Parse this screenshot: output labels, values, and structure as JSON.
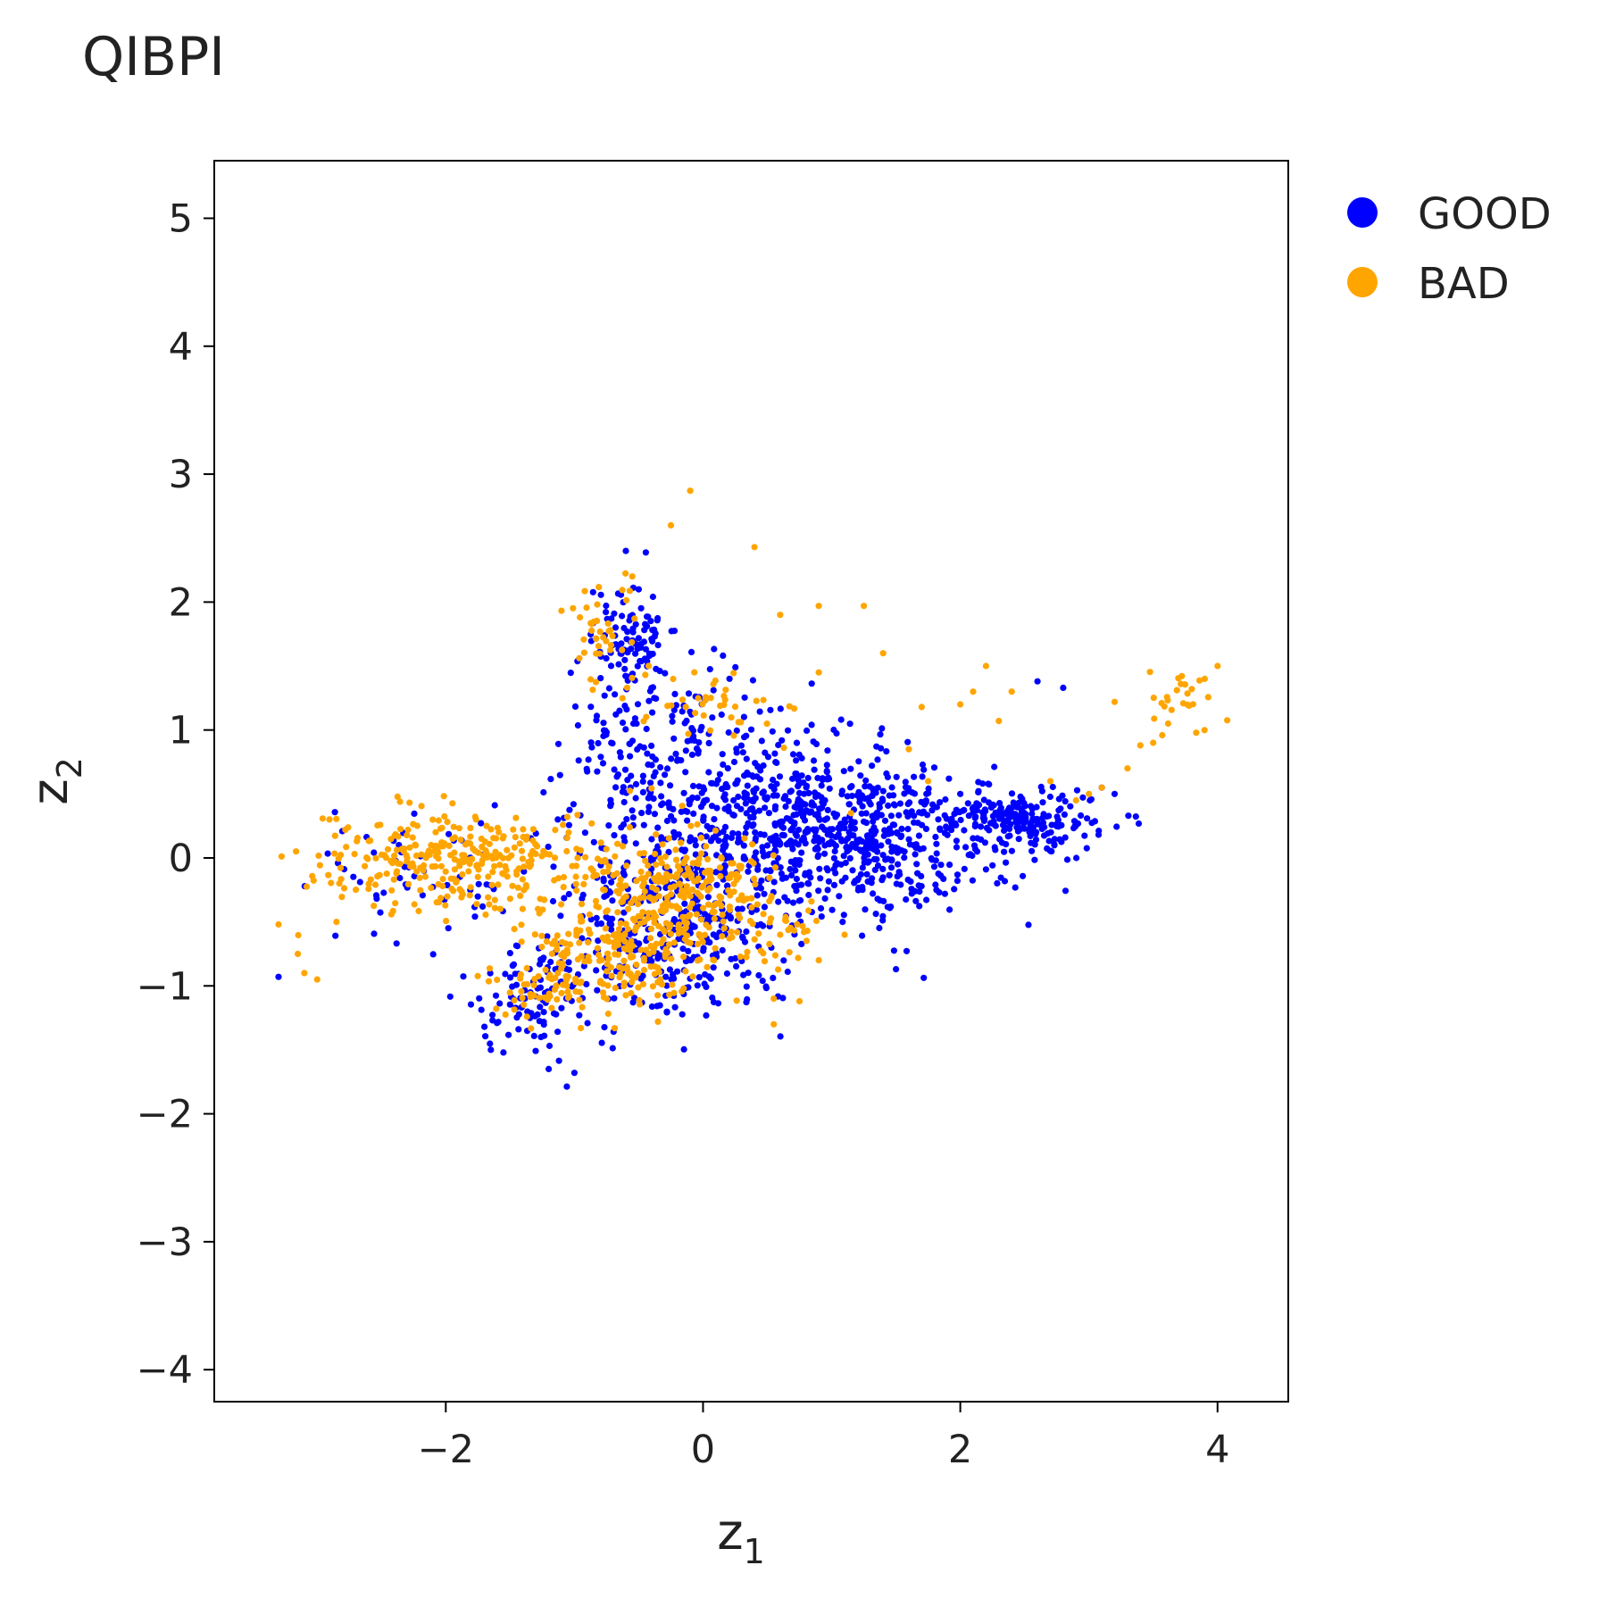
{
  "chart_data": {
    "type": "scatter",
    "title": "QIBPI",
    "xlabel": {
      "main": "z",
      "sub": "1"
    },
    "ylabel": {
      "main": "z",
      "sub": "2"
    },
    "xlim": [
      -3.8,
      4.55
    ],
    "ylim": [
      -4.25,
      5.45
    ],
    "xticks": [
      -2,
      0,
      2,
      4
    ],
    "xtick_labels": [
      "−2",
      "0",
      "2",
      "4"
    ],
    "yticks": [
      -4,
      -3,
      -2,
      -1,
      0,
      1,
      2,
      3,
      4,
      5
    ],
    "ytick_labels": [
      "−4",
      "−3",
      "−2",
      "−1",
      "0",
      "1",
      "2",
      "3",
      "4",
      "5"
    ],
    "grid": false,
    "legend": "right-outside-top",
    "series": [
      {
        "name": "GOOD",
        "color": "#0000ff",
        "clusters": [
          {
            "x": 1.2,
            "y": 0.15,
            "sx": 0.55,
            "sy": 0.3,
            "n": 550
          },
          {
            "x": 2.5,
            "y": 0.3,
            "sx": 0.35,
            "sy": 0.12,
            "n": 200
          },
          {
            "x": -0.25,
            "y": -0.55,
            "sx": 0.45,
            "sy": 0.35,
            "n": 380
          },
          {
            "x": -0.35,
            "y": 0.75,
            "sx": 0.4,
            "sy": 0.5,
            "n": 250
          },
          {
            "x": -0.55,
            "y": 1.7,
            "sx": 0.15,
            "sy": 0.2,
            "n": 90
          },
          {
            "x": -1.3,
            "y": -1.1,
            "sx": 0.25,
            "sy": 0.2,
            "n": 90
          },
          {
            "x": -2.3,
            "y": -0.1,
            "sx": 0.45,
            "sy": 0.25,
            "n": 60
          },
          {
            "x": 0.5,
            "y": 0.4,
            "sx": 0.4,
            "sy": 0.3,
            "n": 200
          }
        ],
        "points": [
          [
            -3.3,
            -0.93
          ],
          [
            -1.65,
            -1.5
          ],
          [
            -1.2,
            -1.65
          ],
          [
            -1.0,
            -1.68
          ],
          [
            -0.5,
            2.1
          ],
          [
            -0.6,
            2.4
          ],
          [
            2.0,
            0.5
          ],
          [
            3.1,
            0.55
          ],
          [
            3.2,
            0.5
          ],
          [
            2.6,
            1.38
          ],
          [
            2.8,
            1.33
          ],
          [
            1.5,
            -0.87
          ],
          [
            -1.7,
            -1.32
          ]
        ]
      },
      {
        "name": "BAD",
        "color": "#ffa500",
        "clusters": [
          {
            "x": -1.9,
            "y": 0.0,
            "sx": 0.55,
            "sy": 0.2,
            "n": 320
          },
          {
            "x": -0.15,
            "y": -0.3,
            "sx": 0.4,
            "sy": 0.25,
            "n": 300
          },
          {
            "x": -0.75,
            "y": -0.75,
            "sx": 0.3,
            "sy": 0.2,
            "n": 170
          },
          {
            "x": -1.3,
            "y": -1.05,
            "sx": 0.2,
            "sy": 0.15,
            "n": 40
          },
          {
            "x": -0.8,
            "y": 1.75,
            "sx": 0.15,
            "sy": 0.25,
            "n": 40
          },
          {
            "x": 0.1,
            "y": 1.15,
            "sx": 0.35,
            "sy": 0.15,
            "n": 40
          },
          {
            "x": 0.6,
            "y": -0.65,
            "sx": 0.2,
            "sy": 0.2,
            "n": 20
          },
          {
            "x": 3.7,
            "y": 1.2,
            "sx": 0.12,
            "sy": 0.12,
            "n": 25
          }
        ],
        "points": [
          [
            -0.1,
            2.87
          ],
          [
            -0.25,
            2.6
          ],
          [
            0.4,
            2.43
          ],
          [
            -0.55,
            2.2
          ],
          [
            0.6,
            1.9
          ],
          [
            0.9,
            1.97
          ],
          [
            1.25,
            1.97
          ],
          [
            1.4,
            1.6
          ],
          [
            2.2,
            1.5
          ],
          [
            0.9,
            1.45
          ],
          [
            2.4,
            1.3
          ],
          [
            2.0,
            1.2
          ],
          [
            2.1,
            1.3
          ],
          [
            2.3,
            1.07
          ],
          [
            1.7,
            1.18
          ],
          [
            3.2,
            1.22
          ],
          [
            3.5,
            0.9
          ],
          [
            3.3,
            0.7
          ],
          [
            3.4,
            0.88
          ],
          [
            3.0,
            0.5
          ],
          [
            3.1,
            0.55
          ],
          [
            2.9,
            0.45
          ],
          [
            2.7,
            0.6
          ],
          [
            4.0,
            1.5
          ],
          [
            3.9,
            1.4
          ],
          [
            3.8,
            1.32
          ],
          [
            -3.3,
            -0.52
          ],
          [
            -3.1,
            -0.9
          ],
          [
            -3.0,
            -0.95
          ],
          [
            -3.15,
            -0.75
          ],
          [
            -2.85,
            -0.5
          ],
          [
            -0.35,
            -1.28
          ],
          [
            0.55,
            -1.3
          ],
          [
            0.55,
            -1.1
          ],
          [
            0.75,
            -1.12
          ],
          [
            0.9,
            -0.8
          ],
          [
            1.1,
            -0.6
          ],
          [
            0.6,
            -0.6
          ],
          [
            -0.95,
            -1.33
          ],
          [
            1.15,
            0.35
          ],
          [
            1.75,
            0.6
          ],
          [
            1.6,
            0.85
          ]
        ]
      }
    ]
  }
}
